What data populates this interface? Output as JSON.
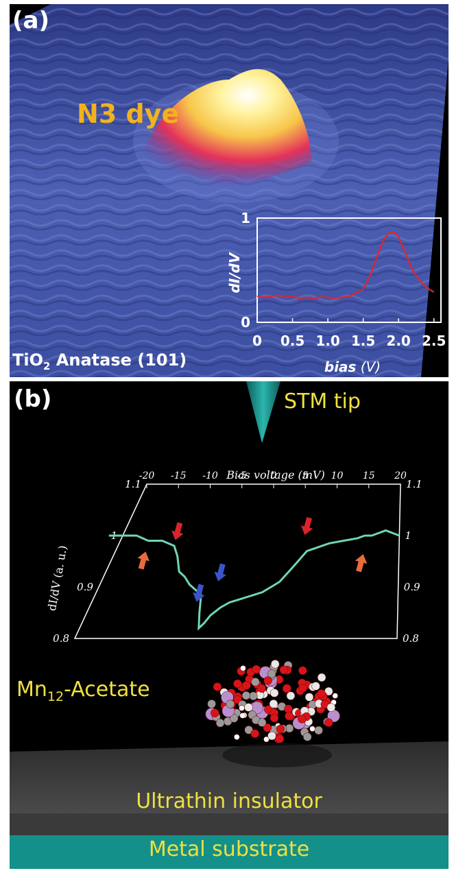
{
  "panel_a": {
    "label": "(a)",
    "molecule_label": "N3 dye",
    "substrate_label_prefix": "TiO",
    "substrate_label_sub": "2",
    "substrate_label_suffix": " Anatase (101)",
    "colors": {
      "surface": "#4a5cae",
      "peak": "#f4e07a",
      "curve": "#e3242b",
      "label_text": "#f2b21e"
    },
    "inset_chart": {
      "chart_data": {
        "type": "line",
        "xlabel_main": "bias",
        "xlabel_unit": " (V)",
        "ylabel": "dI/dV",
        "xlim": [
          0,
          2.6
        ],
        "ylim": [
          0,
          1
        ],
        "x_ticks": [
          "0",
          "0.5",
          "1.0",
          "1.5",
          "2.0",
          "2.5"
        ],
        "x_tick_values": [
          0,
          0.5,
          1.0,
          1.5,
          2.0,
          2.5
        ],
        "y_ticks": [
          "0",
          "1"
        ],
        "y_tick_values": [
          0,
          1
        ],
        "series": [
          {
            "x": [
              0,
              0.1,
              0.2,
              0.3,
              0.4,
              0.5,
              0.6,
              0.7,
              0.8,
              0.9,
              1.0,
              1.1,
              1.2,
              1.3,
              1.4,
              1.5,
              1.6,
              1.65,
              1.7,
              1.75,
              1.8,
              1.85,
              1.9,
              1.95,
              2.0,
              2.05,
              2.1,
              2.15,
              2.2,
              2.3,
              2.4,
              2.5
            ],
            "y": [
              0.25,
              0.24,
              0.25,
              0.26,
              0.24,
              0.25,
              0.23,
              0.24,
              0.23,
              0.24,
              0.24,
              0.23,
              0.24,
              0.25,
              0.28,
              0.32,
              0.45,
              0.55,
              0.64,
              0.73,
              0.8,
              0.85,
              0.87,
              0.86,
              0.82,
              0.74,
              0.66,
              0.58,
              0.5,
              0.4,
              0.33,
              0.29
            ]
          }
        ]
      }
    }
  },
  "panel_b": {
    "label": "(b)",
    "tip_label": "STM tip",
    "molecule_label_prefix": "Mn",
    "molecule_label_sub": "12",
    "molecule_label_suffix": "-Acetate",
    "insulator_label": "Ultrathin insulator",
    "substrate_label": "Metal substrate",
    "colors": {
      "tip": "#1f9e96",
      "curve": "#6fd6b4",
      "insulator": "#3d3d3d",
      "substrate": "#13908a",
      "label_text": "#f0e040",
      "red_arrow": "#d8242a",
      "orange_arrow": "#e86a3d",
      "blue_arrow": "#3a55c8"
    },
    "main_chart": {
      "chart_data": {
        "type": "line",
        "xlabel": "Bias voltage (mV)",
        "ylabel": "dI/dV (a. u.)",
        "xlim": [
          -20,
          20
        ],
        "ylim": [
          0.8,
          1.1
        ],
        "x_ticks": [
          "-20",
          "-15",
          "-10",
          "-5",
          "0",
          "5",
          "10",
          "15",
          "20"
        ],
        "x_tick_values": [
          -20,
          -15,
          -10,
          -5,
          0,
          5,
          10,
          15,
          20
        ],
        "y_ticks": [
          "1.1",
          "1",
          "0.9",
          "0.8"
        ],
        "y_tick_values": [
          1.1,
          1.0,
          0.9,
          0.8
        ],
        "series": [
          {
            "x": [
              -22,
              -20,
              -18,
              -16,
              -14,
              -12,
              -11,
              -10,
              -9,
              -8,
              -7,
              -6,
              -5.5,
              -5,
              -4.5,
              -4,
              -3,
              -2,
              -1,
              0,
              1,
              2,
              3,
              4,
              5,
              6,
              7,
              8,
              10,
              12,
              14,
              15,
              16,
              18,
              20
            ],
            "y": [
              1.0,
              1.0,
              1.0,
              0.99,
              0.99,
              0.98,
              0.96,
              0.93,
              0.92,
              0.905,
              0.895,
              0.885,
              0.85,
              0.82,
              0.83,
              0.845,
              0.86,
              0.87,
              0.875,
              0.88,
              0.885,
              0.89,
              0.9,
              0.91,
              0.93,
              0.95,
              0.97,
              0.975,
              0.985,
              0.99,
              0.995,
              1.0,
              1.0,
              1.01,
              1.0
            ]
          }
        ],
        "markers": [
          {
            "x": -17,
            "color": "orange",
            "direction": "up"
          },
          {
            "x": -11,
            "color": "red",
            "direction": "down"
          },
          {
            "x": -5,
            "color": "blue",
            "direction": "down"
          },
          {
            "x": -3,
            "color": "blue",
            "direction": "down"
          },
          {
            "x": 7,
            "color": "red",
            "direction": "down"
          },
          {
            "x": 14.5,
            "color": "orange",
            "direction": "up"
          }
        ]
      }
    }
  }
}
